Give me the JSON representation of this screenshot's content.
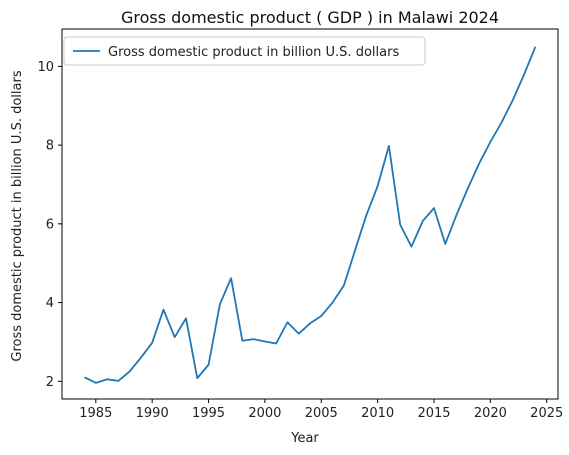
{
  "chart_data": {
    "type": "line",
    "title": "Gross domestic product ( GDP ) in Malawi 2024",
    "xlabel": "Year",
    "ylabel": "Gross domestic product in billion U.S. dollars",
    "xlim": [
      1982.0,
      2026.0
    ],
    "ylim": [
      1.55,
      10.95
    ],
    "x_ticks": [
      1985,
      1990,
      1995,
      2000,
      2005,
      2010,
      2015,
      2020,
      2025
    ],
    "y_ticks": [
      2,
      4,
      6,
      8,
      10
    ],
    "grid": false,
    "legend_position": "top-left",
    "series": [
      {
        "name": "Gross domestic product in billion U.S. dollars",
        "color": "#1f77b4",
        "x": [
          1984,
          1985,
          1986,
          1987,
          1988,
          1989,
          1990,
          1991,
          1992,
          1993,
          1994,
          1995,
          1996,
          1997,
          1998,
          1999,
          2000,
          2001,
          2002,
          2003,
          2004,
          2005,
          2006,
          2007,
          2008,
          2009,
          2010,
          2011,
          2012,
          2013,
          2014,
          2015,
          2016,
          2017,
          2018,
          2019,
          2020,
          2021,
          2022,
          2023,
          2024
        ],
        "values": [
          2.1,
          1.96,
          2.05,
          2.01,
          2.25,
          2.6,
          2.98,
          3.82,
          3.12,
          3.6,
          2.08,
          2.42,
          3.95,
          4.62,
          3.03,
          3.07,
          3.01,
          2.96,
          3.5,
          3.21,
          3.47,
          3.66,
          4.0,
          4.43,
          5.33,
          6.22,
          6.96,
          7.98,
          5.98,
          5.42,
          6.07,
          6.4,
          5.49,
          6.23,
          6.9,
          7.53,
          8.08,
          8.58,
          9.15,
          9.8,
          10.5
        ]
      }
    ]
  }
}
